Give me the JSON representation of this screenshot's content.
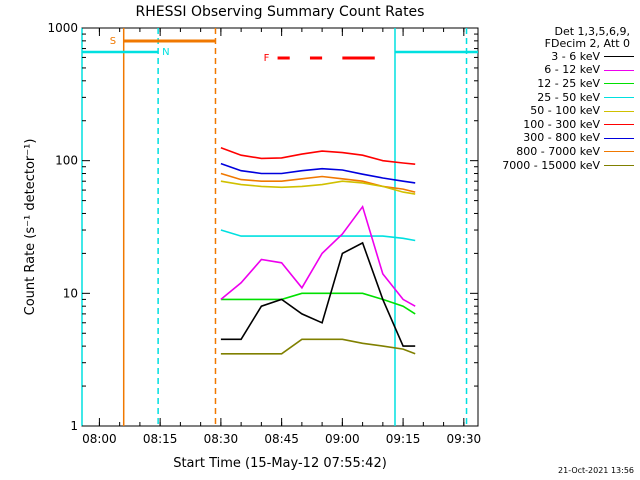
{
  "chart_data": {
    "type": "line",
    "title": "RHESSI Observing Summary Count Rates",
    "xlabel": "Start Time (15-May-12 07:55:42)",
    "ylabel": "Count Rate (s⁻¹ detector⁻¹)",
    "y_scale": "log",
    "ylim": [
      1,
      1000
    ],
    "y_ticks": [
      1,
      10,
      100,
      1000
    ],
    "y_tick_labels": [
      "1",
      "10",
      "100",
      "1000"
    ],
    "xlim": [
      "07:55:42",
      "09:33:30"
    ],
    "x_ticks": [
      "08:00",
      "08:15",
      "08:30",
      "08:45",
      "09:00",
      "09:15",
      "09:30"
    ],
    "grid": false,
    "legend_position": "right",
    "legend_header": [
      "Det 1,3,5,6,9,",
      "FDecim 2, Att 0"
    ],
    "flags": [
      {
        "label": "S",
        "color": "#f07800",
        "start": "08:06",
        "end": "08:28:40"
      },
      {
        "label": "N",
        "color": "#00e0e0",
        "start": "07:55:42",
        "end": "08:14:30",
        "level": 660
      },
      {
        "label": "N",
        "color": "#00e0e0",
        "start": "09:13",
        "end": "09:33:30",
        "level": 660
      },
      {
        "label": "F",
        "color": "#ff0000",
        "segments": [
          [
            "08:44",
            "08:47"
          ],
          [
            "08:52",
            "08:55"
          ],
          [
            "09:00",
            "09:08"
          ]
        ]
      }
    ],
    "vlines": [
      {
        "time": "07:55:42",
        "color": "#00e0e0",
        "style": "solid"
      },
      {
        "time": "08:06",
        "color": "#f07800",
        "style": "solid"
      },
      {
        "time": "08:14:30",
        "color": "#00e0e0",
        "style": "dashed"
      },
      {
        "time": "08:28:40",
        "color": "#f07800",
        "style": "dashed"
      },
      {
        "time": "09:13",
        "color": "#00e0e0",
        "style": "solid"
      },
      {
        "time": "09:30:40",
        "color": "#00e0e0",
        "style": "dashed"
      }
    ],
    "data_range": [
      "08:30",
      "09:18"
    ],
    "x_times": [
      "08:30",
      "08:35",
      "08:40",
      "08:45",
      "08:50",
      "08:55",
      "09:00",
      "09:05",
      "09:10",
      "09:15",
      "09:18"
    ],
    "series": [
      {
        "name": "3 - 6 keV",
        "color": "#000000",
        "values": [
          4.5,
          4.5,
          8,
          9,
          7,
          6,
          20,
          24,
          9,
          4,
          4
        ]
      },
      {
        "name": "6 - 12 keV",
        "color": "#ee00ee",
        "values": [
          9,
          12,
          18,
          17,
          11,
          20,
          28,
          45,
          14,
          9,
          8
        ]
      },
      {
        "name": "12 - 25 keV",
        "color": "#00e000",
        "values": [
          9,
          9,
          9,
          9,
          10,
          10,
          10,
          10,
          9,
          8,
          7
        ]
      },
      {
        "name": "25 - 50 keV",
        "color": "#00e0e0",
        "values": [
          30,
          27,
          27,
          27,
          27,
          27,
          27,
          27,
          27,
          26,
          25
        ]
      },
      {
        "name": "50 - 100 keV",
        "color": "#d0c000",
        "values": [
          70,
          66,
          64,
          63,
          64,
          66,
          70,
          68,
          64,
          58,
          56
        ]
      },
      {
        "name": "100 - 300 keV",
        "color": "#ff0000",
        "values": [
          125,
          110,
          104,
          105,
          112,
          118,
          115,
          110,
          100,
          96,
          94
        ]
      },
      {
        "name": "300 - 800 keV",
        "color": "#0000dd",
        "values": [
          95,
          84,
          80,
          80,
          84,
          87,
          85,
          79,
          74,
          70,
          68
        ]
      },
      {
        "name": "800 - 7000 keV",
        "color": "#f07800",
        "values": [
          80,
          72,
          70,
          70,
          73,
          76,
          73,
          70,
          64,
          61,
          58
        ]
      },
      {
        "name": "7000 - 15000 keV",
        "color": "#808000",
        "values": [
          3.5,
          3.5,
          3.5,
          3.5,
          4.5,
          4.5,
          4.5,
          4.2,
          4,
          3.8,
          3.5
        ]
      }
    ]
  },
  "timestamp": "21-Oct-2021 13:56"
}
